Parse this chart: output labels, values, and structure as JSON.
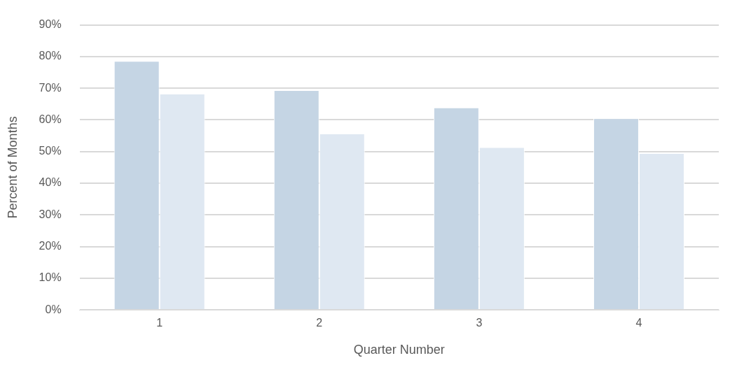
{
  "chart_data": {
    "type": "bar",
    "xlabel": "Quarter Number",
    "ylabel": "Percent of Months",
    "categories": [
      "1",
      "2",
      "3",
      "4"
    ],
    "series": [
      {
        "color": "#c5d5e4",
        "values": [
          78.6,
          69.4,
          63.9,
          60.5
        ]
      },
      {
        "color": "#dfe8f2",
        "values": [
          68.3,
          55.7,
          51.4,
          49.5
        ]
      }
    ],
    "ylim": [
      0,
      90
    ],
    "yticks": [
      {
        "value": 0,
        "label": "0%"
      },
      {
        "value": 10,
        "label": "10%"
      },
      {
        "value": 20,
        "label": "20%"
      },
      {
        "value": 30,
        "label": "30%"
      },
      {
        "value": 40,
        "label": "40%"
      },
      {
        "value": 50,
        "label": "50%"
      },
      {
        "value": 60,
        "label": "60%"
      },
      {
        "value": 70,
        "label": "70%"
      },
      {
        "value": 80,
        "label": "80%"
      },
      {
        "value": 90,
        "label": "90%"
      }
    ],
    "grid": "y",
    "legend": false
  }
}
